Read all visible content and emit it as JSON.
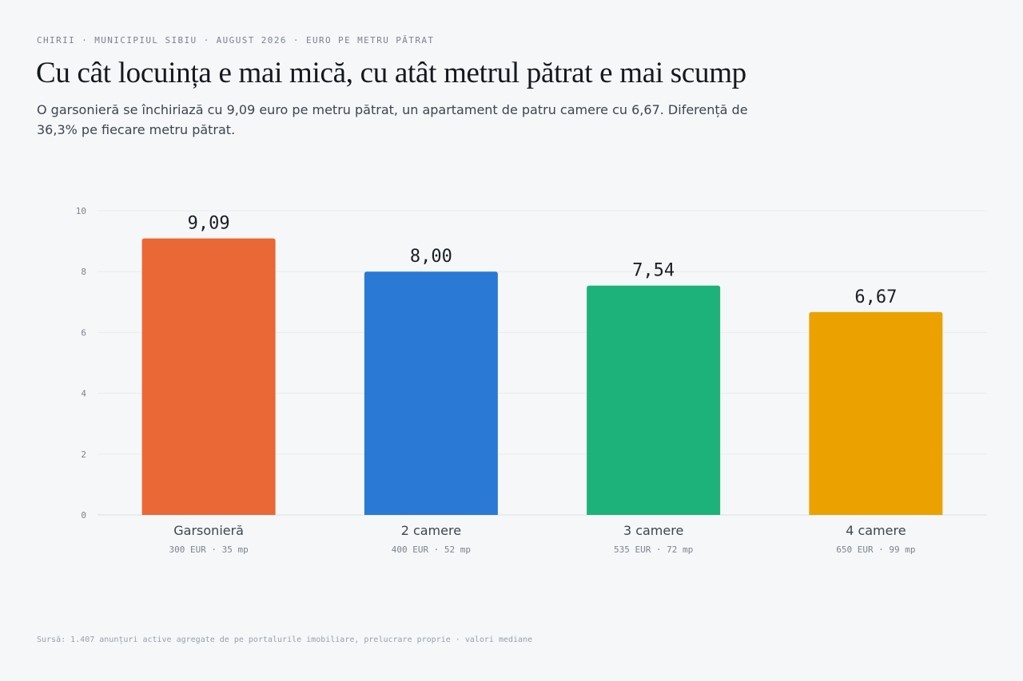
{
  "header": {
    "kicker": "CHIRII · MUNICIPIUL SIBIU · AUGUST 2026 · EURO PE METRU PĂTRAT",
    "title": "Cu cât locuința e mai mică, cu atât metrul pătrat e mai scump",
    "subtitle": "O garsonieră se închiriază cu 9,09 euro pe metru pătrat, un apartament de patru camere cu 6,67. Diferență de 36,3% pe fiecare metru pătrat."
  },
  "chart_data": {
    "type": "bar",
    "title": "",
    "xlabel": "",
    "ylabel": "",
    "ylim": [
      0,
      10
    ],
    "yticks": [
      0,
      2,
      4,
      6,
      8,
      10
    ],
    "grid": true,
    "categories": [
      "Garsonieră",
      "2 camere",
      "3 camere",
      "4 camere"
    ],
    "sublabels": [
      "300 EUR · 35 mp",
      "400 EUR · 52 mp",
      "535 EUR · 72 mp",
      "650 EUR · 99 mp"
    ],
    "values": [
      9.09,
      8.0,
      7.54,
      6.67
    ],
    "value_labels": [
      "9,09",
      "8,00",
      "7,54",
      "6,67"
    ],
    "colors": [
      "#e96835",
      "#2979d5",
      "#1db27a",
      "#eba200"
    ]
  },
  "footer": {
    "source": "Sursă: 1.407 anunțuri active agregate de pe portalurile imobiliare, prelucrare proprie · valori mediane"
  }
}
